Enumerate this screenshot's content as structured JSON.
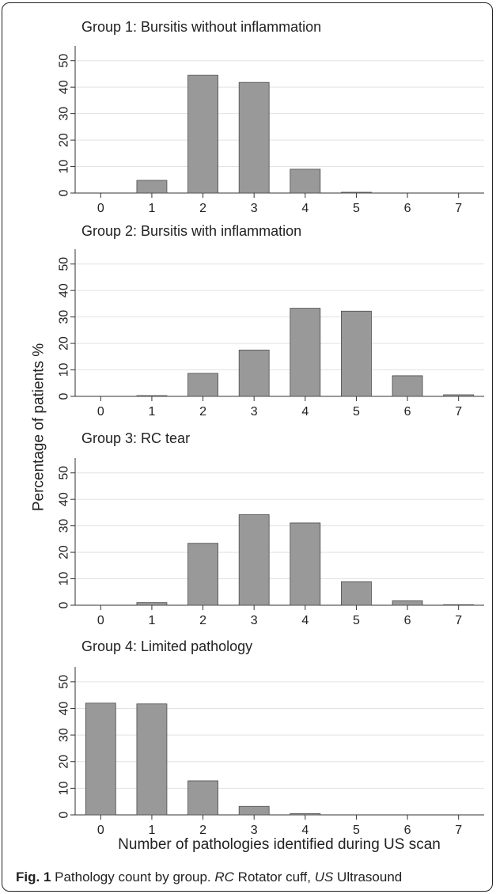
{
  "chart_data": {
    "type": "bar",
    "shared_ylabel": "Percentage of patients %",
    "shared_xlabel": "Number of pathologies identified during US scan",
    "categories": [
      "0",
      "1",
      "2",
      "3",
      "4",
      "5",
      "6",
      "7"
    ],
    "ylim": [
      0,
      55
    ],
    "yticks": [
      0,
      10,
      20,
      30,
      40,
      50
    ],
    "grid": true,
    "bar_color": "#999999",
    "panels": [
      {
        "title": "Group 1: Bursitis without inflammation",
        "values": [
          0,
          4.8,
          44.5,
          41.8,
          9.0,
          0.3,
          0,
          0
        ]
      },
      {
        "title": "Group 2: Bursitis with inflammation",
        "values": [
          0,
          0.3,
          8.7,
          17.5,
          33.3,
          32.2,
          7.8,
          0.6
        ]
      },
      {
        "title": "Group 3: RC tear",
        "values": [
          0,
          1.0,
          23.4,
          34.2,
          31.1,
          8.9,
          1.7,
          0.2
        ]
      },
      {
        "title": "Group 4: Limited pathology",
        "values": [
          42.0,
          41.7,
          12.8,
          3.2,
          0.5,
          0,
          0,
          0
        ]
      }
    ]
  },
  "caption": {
    "fig_label": "Fig. 1",
    "text_1": " Pathology count by group. ",
    "abbr_1": "RC",
    "text_2": " Rotator cuff, ",
    "abbr_2": "US",
    "text_3": " Ultrasound"
  }
}
